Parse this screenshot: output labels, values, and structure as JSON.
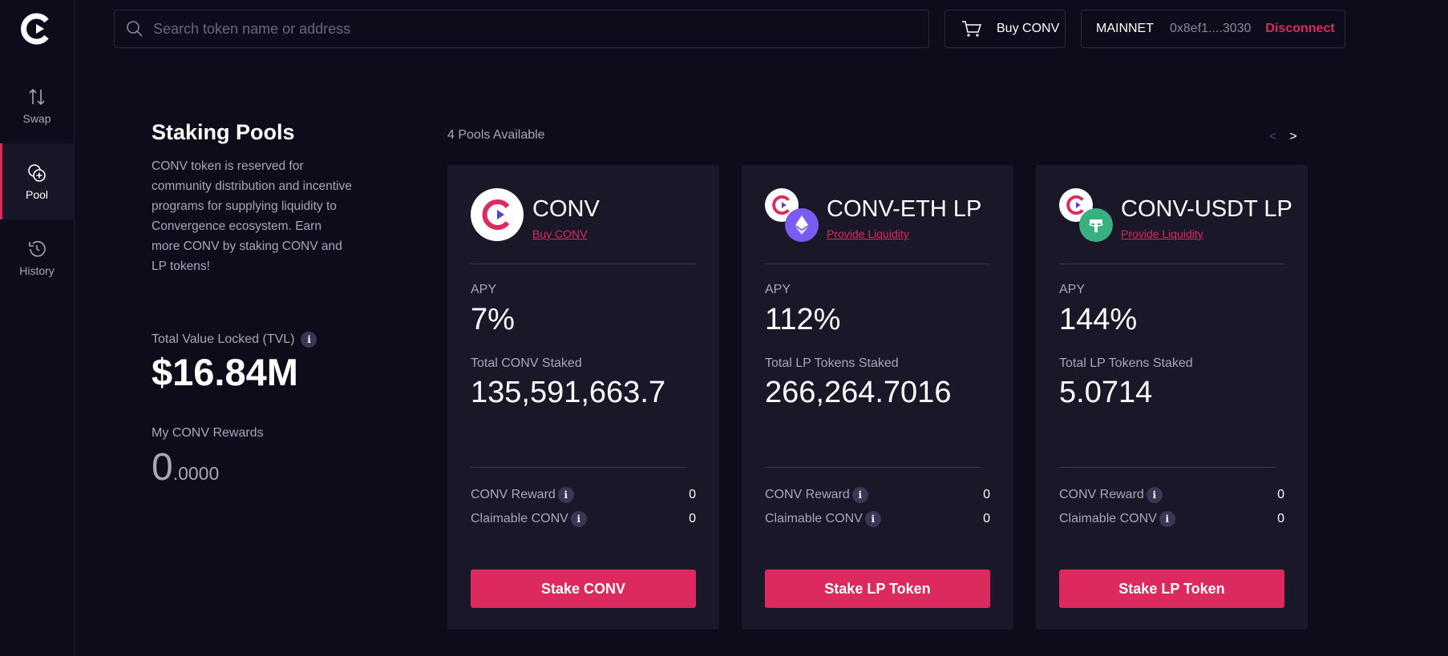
{
  "sidebar": {
    "items": [
      {
        "label": "Swap"
      },
      {
        "label": "Pool"
      },
      {
        "label": "History"
      }
    ]
  },
  "header": {
    "search_placeholder": "Search token name or address",
    "buy_label": "Buy CONV",
    "network": "MAINNET",
    "address": "0x8ef1....3030",
    "disconnect_label": "Disconnect"
  },
  "info": {
    "title": "Staking Pools",
    "description": "CONV token is reserved for community distribution and incentive programs for supplying liquidity to Convergence ecosystem. Earn more CONV by staking CONV and LP tokens!",
    "tvl_label": "Total Value Locked (TVL)",
    "tvl_value": "$16.84M",
    "rewards_label": "My CONV Rewards",
    "rewards_int": "0",
    "rewards_dec": ".0000"
  },
  "pools_header": {
    "count_text": "4 Pools Available",
    "prev": "<",
    "next": ">"
  },
  "pools": [
    {
      "name": "CONV",
      "link": "Buy CONV",
      "apy_label": "APY",
      "apy": "7%",
      "staked_label": "Total CONV Staked",
      "staked": "135,591,663.7",
      "reward_label": "CONV Reward",
      "reward": "0",
      "claimable_label": "Claimable CONV",
      "claimable": "0",
      "button": "Stake CONV"
    },
    {
      "name": "CONV-ETH LP",
      "link": "Provide Liquidity",
      "apy_label": "APY",
      "apy": "112%",
      "staked_label": "Total LP Tokens Staked",
      "staked": "266,264.7016",
      "reward_label": "CONV Reward",
      "reward": "0",
      "claimable_label": "Claimable CONV",
      "claimable": "0",
      "button": "Stake LP Token"
    },
    {
      "name": "CONV-USDT LP",
      "link": "Provide Liquidity",
      "apy_label": "APY",
      "apy": "144%",
      "staked_label": "Total LP Tokens Staked",
      "staked": "5.0714",
      "reward_label": "CONV Reward",
      "reward": "0",
      "claimable_label": "Claimable CONV",
      "claimable": "0",
      "button": "Stake LP Token"
    }
  ],
  "colors": {
    "accent": "#dc2a5f",
    "background": "#0e0b1a",
    "card": "#1a1729",
    "eth": "#7b5cf0",
    "usdt": "#3aaf7f"
  }
}
